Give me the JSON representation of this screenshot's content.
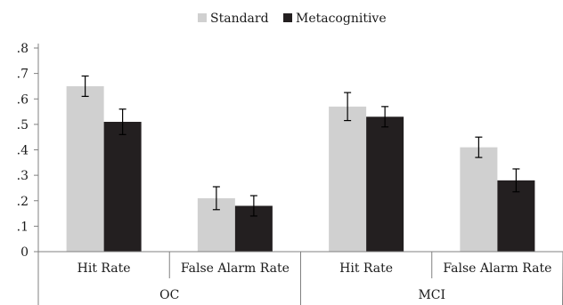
{
  "chart_data": {
    "type": "bar",
    "groups": [
      {
        "name": "OC",
        "categories": [
          "Hit Rate",
          "False Alarm Rate"
        ]
      },
      {
        "name": "MCI",
        "categories": [
          "Hit Rate",
          "False Alarm Rate"
        ]
      }
    ],
    "series": [
      {
        "name": "Standard",
        "color": "#d0d0d0",
        "values": [
          0.65,
          0.21,
          0.57,
          0.41
        ],
        "errors": [
          0.04,
          0.045,
          0.055,
          0.04
        ]
      },
      {
        "name": "Metacognitive",
        "color": "#231f20",
        "values": [
          0.51,
          0.18,
          0.53,
          0.28
        ],
        "errors": [
          0.05,
          0.04,
          0.04,
          0.045
        ]
      }
    ],
    "yticks": [
      "0",
      ".1",
      ".2",
      ".3",
      ".4",
      ".5",
      ".6",
      ".7",
      ".8"
    ],
    "ylim": [
      0,
      0.8
    ],
    "legend_position": "top-center",
    "grid": false,
    "title": "",
    "xlabel": "",
    "ylabel": ""
  }
}
